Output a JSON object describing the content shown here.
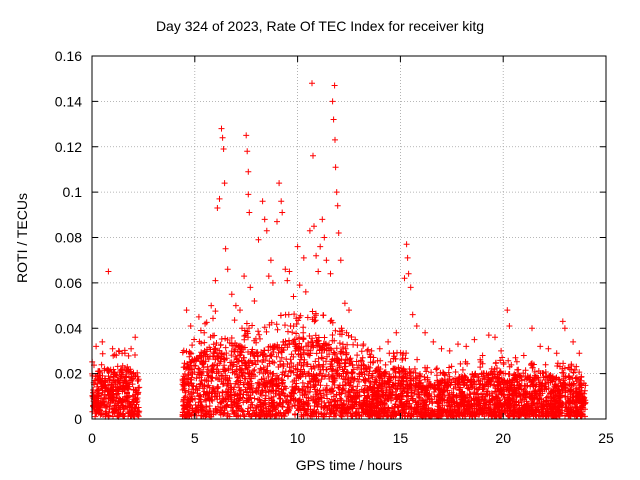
{
  "chart_data": {
    "type": "scatter",
    "title": "Day 324 of 2023, Rate Of TEC Index for receiver kitg",
    "xlabel": "GPS time / hours",
    "ylabel": "ROTI / TECUs",
    "xlim": [
      0,
      25
    ],
    "ylim": [
      0,
      0.16
    ],
    "xticks": [
      0,
      5,
      10,
      15,
      20,
      25
    ],
    "yticks": [
      0,
      0.02,
      0.04,
      0.06,
      0.08,
      0.1,
      0.12,
      0.14,
      0.16
    ],
    "xtick_labels": [
      "0",
      "5",
      "10",
      "15",
      "20",
      "25"
    ],
    "ytick_labels": [
      "0",
      "0.02",
      "0.04",
      "0.06",
      "0.08",
      "0.1",
      "0.12",
      "0.14",
      "0.16"
    ],
    "grid": true,
    "marker": "plus",
    "color": "#ff0000",
    "series": [
      {
        "points": [
          [
            0.2,
            0.032
          ],
          [
            0.5,
            0.034
          ],
          [
            0.8,
            0.065
          ],
          [
            1.0,
            0.031
          ],
          [
            1.3,
            0.03
          ],
          [
            1.6,
            0.029
          ],
          [
            1.9,
            0.031
          ],
          [
            2.1,
            0.036
          ],
          [
            4.6,
            0.048
          ],
          [
            4.8,
            0.041
          ],
          [
            5.2,
            0.045
          ],
          [
            5.5,
            0.042
          ],
          [
            5.8,
            0.05
          ],
          [
            6.0,
            0.061
          ],
          [
            6.1,
            0.093
          ],
          [
            6.2,
            0.097
          ],
          [
            6.3,
            0.128
          ],
          [
            6.35,
            0.124
          ],
          [
            6.4,
            0.119
          ],
          [
            6.45,
            0.104
          ],
          [
            6.5,
            0.075
          ],
          [
            6.6,
            0.066
          ],
          [
            6.8,
            0.055
          ],
          [
            7.0,
            0.05
          ],
          [
            7.2,
            0.048
          ],
          [
            7.4,
            0.063
          ],
          [
            7.5,
            0.125
          ],
          [
            7.55,
            0.118
          ],
          [
            7.6,
            0.109
          ],
          [
            7.6,
            0.099
          ],
          [
            7.65,
            0.091
          ],
          [
            7.7,
            0.058
          ],
          [
            7.9,
            0.052
          ],
          [
            8.1,
            0.079
          ],
          [
            8.3,
            0.096
          ],
          [
            8.4,
            0.088
          ],
          [
            8.5,
            0.083
          ],
          [
            8.6,
            0.063
          ],
          [
            8.7,
            0.07
          ],
          [
            8.8,
            0.06
          ],
          [
            9.0,
            0.087
          ],
          [
            9.1,
            0.104
          ],
          [
            9.2,
            0.096
          ],
          [
            9.25,
            0.091
          ],
          [
            9.4,
            0.066
          ],
          [
            9.5,
            0.061
          ],
          [
            9.6,
            0.065
          ],
          [
            9.8,
            0.054
          ],
          [
            10.0,
            0.076
          ],
          [
            10.1,
            0.059
          ],
          [
            10.3,
            0.071
          ],
          [
            10.4,
            0.056
          ],
          [
            10.6,
            0.083
          ],
          [
            10.7,
            0.148
          ],
          [
            10.75,
            0.116
          ],
          [
            10.8,
            0.085
          ],
          [
            10.9,
            0.072
          ],
          [
            11.0,
            0.065
          ],
          [
            11.1,
            0.076
          ],
          [
            11.2,
            0.088
          ],
          [
            11.3,
            0.08
          ],
          [
            11.4,
            0.07
          ],
          [
            11.6,
            0.064
          ],
          [
            11.7,
            0.14
          ],
          [
            11.75,
            0.132
          ],
          [
            11.8,
            0.147
          ],
          [
            11.82,
            0.123
          ],
          [
            11.85,
            0.111
          ],
          [
            11.9,
            0.1
          ],
          [
            11.95,
            0.094
          ],
          [
            12.0,
            0.082
          ],
          [
            12.1,
            0.07
          ],
          [
            12.3,
            0.051
          ],
          [
            12.5,
            0.048
          ],
          [
            12.8,
            0.035
          ],
          [
            13.2,
            0.033
          ],
          [
            13.6,
            0.03
          ],
          [
            14.0,
            0.031
          ],
          [
            14.4,
            0.034
          ],
          [
            14.8,
            0.038
          ],
          [
            15.2,
            0.062
          ],
          [
            15.3,
            0.077
          ],
          [
            15.35,
            0.071
          ],
          [
            15.4,
            0.064
          ],
          [
            15.5,
            0.058
          ],
          [
            15.6,
            0.046
          ],
          [
            15.8,
            0.041
          ],
          [
            16.2,
            0.038
          ],
          [
            16.6,
            0.034
          ],
          [
            17.0,
            0.031
          ],
          [
            17.4,
            0.03
          ],
          [
            17.8,
            0.033
          ],
          [
            18.2,
            0.032
          ],
          [
            18.6,
            0.035
          ],
          [
            19.0,
            0.028
          ],
          [
            19.3,
            0.037
          ],
          [
            19.6,
            0.036
          ],
          [
            19.9,
            0.03
          ],
          [
            20.2,
            0.048
          ],
          [
            20.3,
            0.041
          ],
          [
            20.6,
            0.027
          ],
          [
            21.0,
            0.028
          ],
          [
            21.4,
            0.04
          ],
          [
            21.8,
            0.032
          ],
          [
            22.2,
            0.031
          ],
          [
            22.6,
            0.029
          ],
          [
            22.9,
            0.043
          ],
          [
            23.0,
            0.04
          ],
          [
            23.4,
            0.034
          ],
          [
            23.7,
            0.029
          ]
        ]
      }
    ],
    "density_profile": {
      "description": "upper envelope of the dense point cloud per hour",
      "segments": [
        {
          "x_from": 0.0,
          "x_to": 2.3,
          "envelope": [
            [
              0,
              0.018
            ],
            [
              0.5,
              0.022
            ],
            [
              1.0,
              0.02
            ],
            [
              1.5,
              0.022
            ],
            [
              2.3,
              0.02
            ]
          ]
        },
        {
          "x_from": 4.4,
          "x_to": 24.0,
          "envelope": [
            [
              4.4,
              0.022
            ],
            [
              5,
              0.026
            ],
            [
              6,
              0.034
            ],
            [
              7,
              0.032
            ],
            [
              8,
              0.03
            ],
            [
              9,
              0.032
            ],
            [
              10,
              0.036
            ],
            [
              11,
              0.034
            ],
            [
              12,
              0.03
            ],
            [
              13,
              0.024
            ],
            [
              14,
              0.02
            ],
            [
              15,
              0.022
            ],
            [
              16,
              0.018
            ],
            [
              17,
              0.016
            ],
            [
              18,
              0.018
            ],
            [
              19,
              0.02
            ],
            [
              20,
              0.02
            ],
            [
              21,
              0.018
            ],
            [
              22,
              0.018
            ],
            [
              23,
              0.018
            ],
            [
              24,
              0.016
            ]
          ]
        }
      ]
    }
  }
}
